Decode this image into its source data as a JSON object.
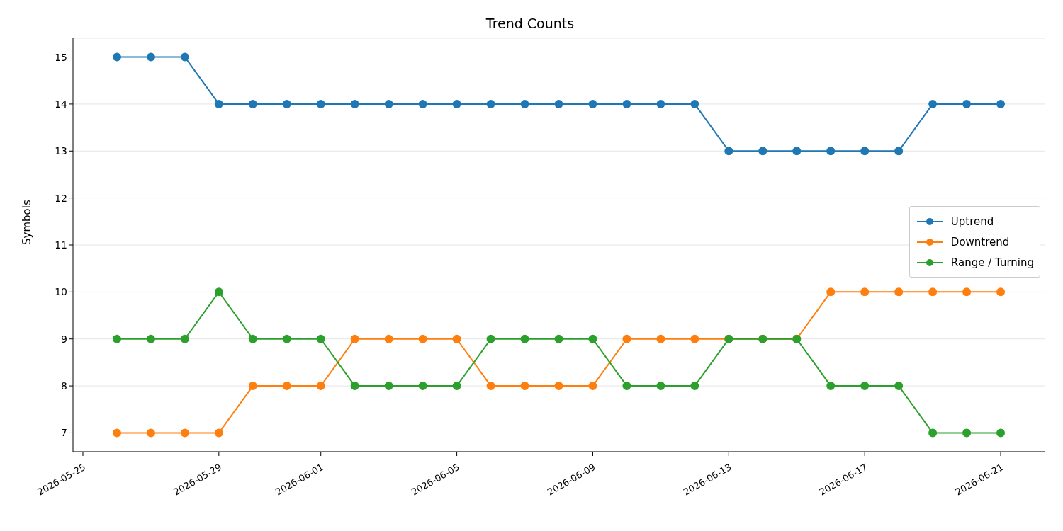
{
  "chart_data": {
    "type": "line",
    "title": "Trend Counts",
    "ylabel": "Symbols",
    "x": [
      "2026-05-26",
      "2026-05-27",
      "2026-05-28",
      "2026-05-29",
      "2026-05-30",
      "2026-05-31",
      "2026-06-01",
      "2026-06-02",
      "2026-06-03",
      "2026-06-04",
      "2026-06-05",
      "2026-06-06",
      "2026-06-07",
      "2026-06-08",
      "2026-06-09",
      "2026-06-10",
      "2026-06-11",
      "2026-06-12",
      "2026-06-13",
      "2026-06-14",
      "2026-06-15",
      "2026-06-16",
      "2026-06-17",
      "2026-06-18",
      "2026-06-19",
      "2026-06-20",
      "2026-06-21"
    ],
    "series": [
      {
        "name": "Uptrend",
        "color": "#1f77b4",
        "values": [
          15,
          15,
          15,
          14,
          14,
          14,
          14,
          14,
          14,
          14,
          14,
          14,
          14,
          14,
          14,
          14,
          14,
          14,
          13,
          13,
          13,
          13,
          13,
          13,
          14,
          14,
          14
        ]
      },
      {
        "name": "Downtrend",
        "color": "#ff7f0e",
        "values": [
          7,
          7,
          7,
          7,
          8,
          8,
          8,
          9,
          9,
          9,
          9,
          8,
          8,
          8,
          8,
          9,
          9,
          9,
          9,
          9,
          9,
          10,
          10,
          10,
          10,
          10,
          10
        ]
      },
      {
        "name": "Range / Turning",
        "color": "#2ca02c",
        "values": [
          9,
          9,
          9,
          10,
          9,
          9,
          9,
          8,
          8,
          8,
          8,
          9,
          9,
          9,
          9,
          8,
          8,
          8,
          9,
          9,
          9,
          8,
          8,
          8,
          7,
          7,
          7
        ]
      }
    ],
    "xlim": [
      "2026-05-24T17:00",
      "2026-06-22T07:00"
    ],
    "xticks": [
      "2026-05-25",
      "2026-05-29",
      "2026-06-01",
      "2026-06-05",
      "2026-06-09",
      "2026-06-13",
      "2026-06-17",
      "2026-06-21"
    ],
    "ylim": [
      6.6,
      15.4
    ],
    "yticks": [
      7,
      8,
      9,
      10,
      11,
      12,
      13,
      14,
      15
    ],
    "grid": "y",
    "legend": "center right",
    "marker": "circle",
    "line_style": "solid"
  }
}
